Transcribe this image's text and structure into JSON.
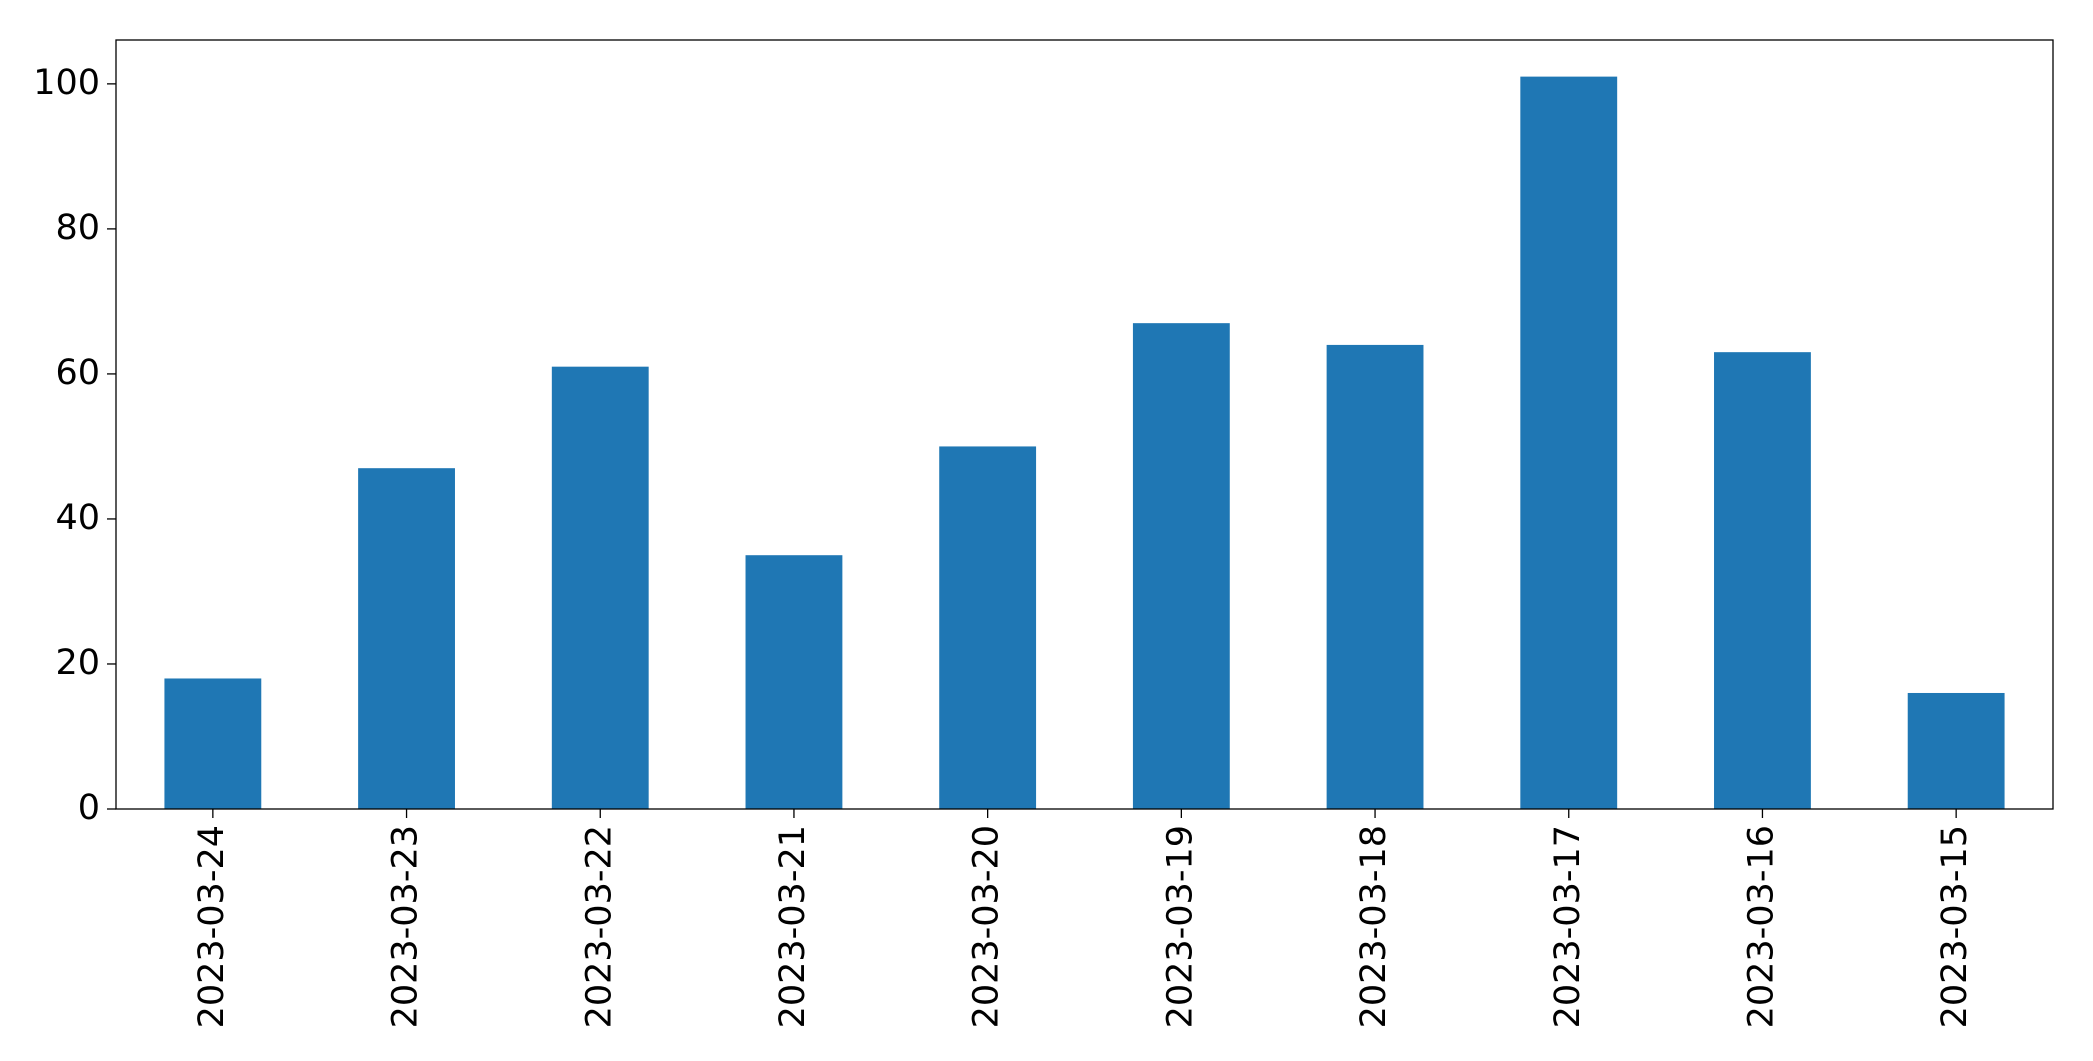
{
  "chart_data": {
    "type": "bar",
    "categories": [
      "2023-03-24",
      "2023-03-23",
      "2023-03-22",
      "2023-03-21",
      "2023-03-20",
      "2023-03-19",
      "2023-03-18",
      "2023-03-17",
      "2023-03-16",
      "2023-03-15"
    ],
    "values": [
      18,
      47,
      61,
      35,
      50,
      67,
      64,
      101,
      63,
      16
    ],
    "color": "#1f77b4",
    "ylim": [
      0,
      106.05
    ],
    "yticks": [
      0,
      20,
      40,
      60,
      80,
      100
    ],
    "grid": false
  }
}
